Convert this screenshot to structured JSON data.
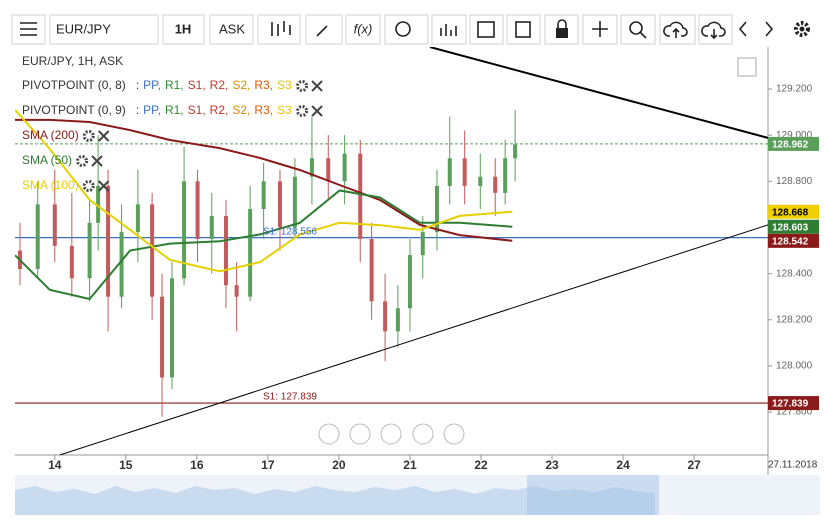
{
  "toolbar": {
    "symbol": "EUR/JPY",
    "timeframe": "1H",
    "price_side": "ASK",
    "fx": "f(x)"
  },
  "chart_data": {
    "type": "candlestick",
    "title": "EUR/JPY, 1H, ASK",
    "x": [
      -0.49,
      -0.24,
      0,
      0.24,
      0.49,
      0.61,
      0.75,
      0.94,
      1.17,
      1.37,
      1.51,
      1.65,
      1.82,
      2.01,
      2.21,
      2.41,
      2.56,
      2.75,
      2.94,
      3.17,
      3.38,
      3.62,
      3.85,
      4.08,
      4.3,
      4.46,
      4.65,
      4.83,
      5,
      5.18,
      5.38,
      5.56,
      5.77,
      5.99,
      6.2,
      6.34,
      6.48
    ],
    "open": [
      128.5,
      128.42,
      128.7,
      128.52,
      128.38,
      128.62,
      128.78,
      128.3,
      128.58,
      128.7,
      128.3,
      127.95,
      128.38,
      128.8,
      128.55,
      128.65,
      128.35,
      128.3,
      128.68,
      128.8,
      128.6,
      128.82,
      128.9,
      128.8,
      128.92,
      128.55,
      128.28,
      128.15,
      128.25,
      128.48,
      128.58,
      128.78,
      128.9,
      128.78,
      128.82,
      128.75,
      128.9
    ],
    "high": [
      128.62,
      128.8,
      128.85,
      128.75,
      128.72,
      129,
      128.85,
      128.7,
      128.85,
      128.75,
      128.4,
      128.45,
      128.95,
      128.85,
      128.75,
      128.72,
      128.45,
      128.78,
      128.88,
      128.85,
      128.9,
      129.08,
      129,
      129,
      128.98,
      128.62,
      128.4,
      128.35,
      128.55,
      128.65,
      128.85,
      129.08,
      129.02,
      128.92,
      128.9,
      128.98,
      129.11
    ],
    "low": [
      128.35,
      128.38,
      128.45,
      128.3,
      128.28,
      128.5,
      128.15,
      128.25,
      128.45,
      128.2,
      127.78,
      127.9,
      128.35,
      128.45,
      128.4,
      128.25,
      128.15,
      128.28,
      128.55,
      128.5,
      128.55,
      128.7,
      128.72,
      128.7,
      128.45,
      128.2,
      128.02,
      128.08,
      128.15,
      128.38,
      128.5,
      128.7,
      128.7,
      128.68,
      128.65,
      128.7,
      128.8
    ],
    "close": [
      128.42,
      128.7,
      128.52,
      128.38,
      128.62,
      128.78,
      128.3,
      128.58,
      128.7,
      128.3,
      127.95,
      128.38,
      128.8,
      128.55,
      128.65,
      128.35,
      128.3,
      128.68,
      128.8,
      128.6,
      128.82,
      128.9,
      128.8,
      128.92,
      128.55,
      128.28,
      128.15,
      128.25,
      128.48,
      128.58,
      128.78,
      128.9,
      128.78,
      128.82,
      128.75,
      128.9,
      128.96
    ],
    "up_color": "#5a9f5a",
    "down_color": "#c25b5b",
    "indicators": [
      {
        "name": "PIVOTPOINT (0, 8)",
        "prefix": ":",
        "items": [
          {
            "text": "PP,",
            "color": "#3a6fc4"
          },
          {
            "text": "R1,",
            "color": "#2e8b2e"
          },
          {
            "text": "S1,",
            "color": "#c0392b"
          },
          {
            "text": "R2,",
            "color": "#c0392b"
          },
          {
            "text": "S2,",
            "color": "#e08a00"
          },
          {
            "text": "R3,",
            "color": "#e05a00"
          },
          {
            "text": "S3",
            "color": "#e5c500"
          }
        ]
      },
      {
        "name": "PIVOTPOINT (0, 9)",
        "prefix": ":",
        "items": [
          {
            "text": "PP,",
            "color": "#3a6fc4"
          },
          {
            "text": "R1,",
            "color": "#2e8b2e"
          },
          {
            "text": "S1,",
            "color": "#c0392b"
          },
          {
            "text": "R2,",
            "color": "#c0392b"
          },
          {
            "text": "S2,",
            "color": "#e08a00"
          },
          {
            "text": "R3,",
            "color": "#e05a00"
          },
          {
            "text": "S3",
            "color": "#e5c500"
          }
        ]
      }
    ],
    "series": [
      {
        "name": "SMA (200)",
        "color": "#8b1a1a",
        "x": [
          -0.56,
          -0.07,
          0.49,
          1.06,
          1.62,
          2.32,
          2.89,
          3.45,
          4.01,
          4.58,
          5.14,
          5.7,
          6.44
        ],
        "values": [
          129.066,
          129.066,
          129.057,
          129.022,
          128.979,
          128.944,
          128.901,
          128.849,
          128.784,
          128.719,
          128.611,
          128.567,
          128.542
        ]
      },
      {
        "name": "SMA (50)",
        "color": "#2e7d32",
        "x": [
          -0.56,
          -0.07,
          0.49,
          1.06,
          1.62,
          2.32,
          2.89,
          3.45,
          4.01,
          4.58,
          5.14,
          5.7,
          6.44
        ],
        "values": [
          128.48,
          128.33,
          128.29,
          128.5,
          128.53,
          128.54,
          128.57,
          128.62,
          128.76,
          128.73,
          128.62,
          128.62,
          128.603
        ]
      },
      {
        "name": "SMA (100)",
        "color": "#e5d000",
        "x": [
          -0.56,
          -0.07,
          0.49,
          1.06,
          1.62,
          2.32,
          2.89,
          3.45,
          4.01,
          4.58,
          5.14,
          5.7,
          6.44
        ],
        "values": [
          129.11,
          128.94,
          128.72,
          128.59,
          128.46,
          128.41,
          128.45,
          128.57,
          128.62,
          128.61,
          128.59,
          128.65,
          128.668
        ]
      }
    ],
    "trendlines": [
      {
        "x": [
          5.28,
          10.04
        ],
        "values": [
          129.382,
          128.988
        ],
        "color": "#000000",
        "width": 2
      },
      {
        "x": [
          0.07,
          10.04
        ],
        "values": [
          127.614,
          128.611
        ],
        "color": "#000000",
        "width": 1
      }
    ],
    "levels": [
      {
        "label": "S1: 127.839",
        "value": 127.839,
        "color": "#8b1a1a"
      },
      {
        "label": "S1: 128.556",
        "value": 128.556,
        "color": "#3a6fc4"
      }
    ],
    "current_price": 128.962,
    "current_color": "#5a9f5a",
    "price_markers": [
      {
        "value": 128.668,
        "color": "#f0d000",
        "text_color": "#000000"
      },
      {
        "value": 128.603,
        "color": "#2e7d32",
        "text_color": "#ffffff"
      },
      {
        "value": 128.542,
        "color": "#8b1a1a",
        "text_color": "#ffffff"
      },
      {
        "value": 127.839,
        "color": "#8b1a1a",
        "text_color": "#ffffff"
      }
    ],
    "xlim": [
      -0.56,
      10.04
    ],
    "xticks": [
      {
        "value": 0,
        "label": "14"
      },
      {
        "value": 1,
        "label": "15"
      },
      {
        "value": 2,
        "label": "16"
      },
      {
        "value": 3,
        "label": "17"
      },
      {
        "value": 4,
        "label": "20"
      },
      {
        "value": 5,
        "label": "21"
      },
      {
        "value": 6,
        "label": "22"
      },
      {
        "value": 7,
        "label": "23"
      },
      {
        "value": 8,
        "label": "24"
      },
      {
        "value": 9,
        "label": "27"
      }
    ],
    "date_label": "27.11.2018",
    "ylim": [
      127.614,
      129.382
    ],
    "yticks": [
      {
        "value": 127.8,
        "label": "127.800"
      },
      {
        "value": 128,
        "label": "128.000"
      },
      {
        "value": 128.2,
        "label": "128.200"
      },
      {
        "value": 128.4,
        "label": "128.400"
      },
      {
        "value": 128.6,
        "label": "128.600"
      },
      {
        "value": 128.8,
        "label": "128.800"
      },
      {
        "value": 129,
        "label": "129.000"
      },
      {
        "value": 129.2,
        "label": "129.200"
      }
    ]
  }
}
